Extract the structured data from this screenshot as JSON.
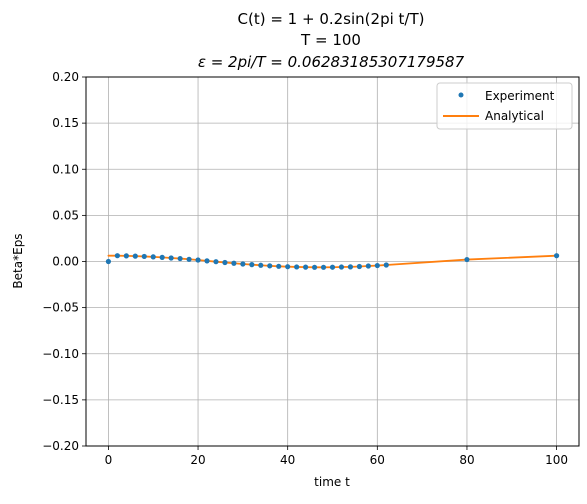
{
  "chart_data": {
    "type": "line",
    "title_lines": [
      "C(t) = 1 + 0.2sin(2pi t/T)",
      "T = 100",
      "ε = 2pi/T = 0.06283185307179587"
    ],
    "xlabel": "time t",
    "ylabel": "Beta*Eps",
    "xlim": [
      -5,
      105
    ],
    "ylim": [
      -0.2,
      0.2
    ],
    "xticks": [
      0,
      20,
      40,
      60,
      80,
      100
    ],
    "yticks": [
      -0.2,
      -0.15,
      -0.1,
      -0.05,
      0.0,
      0.05,
      0.1,
      0.15,
      0.2
    ],
    "xtick_labels": [
      "0",
      "20",
      "40",
      "60",
      "80",
      "100"
    ],
    "ytick_labels": [
      "−0.20",
      "−0.15",
      "−0.10",
      "−0.05",
      "0.00",
      "0.05",
      "0.10",
      "0.15",
      "0.20"
    ],
    "grid": true,
    "legend_position": "upper right",
    "series": [
      {
        "name": "Experiment",
        "style": "markers",
        "color": "#1f77b4",
        "x": [
          0,
          2,
          4,
          6,
          8,
          10,
          12,
          14,
          16,
          18,
          20,
          22,
          24,
          26,
          28,
          30,
          32,
          34,
          36,
          38,
          40,
          42,
          44,
          46,
          48,
          50,
          52,
          54,
          56,
          58,
          60,
          62,
          80,
          100
        ],
        "y": [
          0.0,
          0.0063,
          0.0061,
          0.0058,
          0.0055,
          0.005,
          0.0045,
          0.0038,
          0.0032,
          0.0024,
          0.0016,
          0.0007,
          -0.0002,
          -0.0011,
          -0.0019,
          -0.0027,
          -0.0034,
          -0.0041,
          -0.0047,
          -0.0052,
          -0.0056,
          -0.0059,
          -0.0061,
          -0.0063,
          -0.0063,
          -0.0062,
          -0.006,
          -0.0058,
          -0.0054,
          -0.0049,
          -0.0044,
          -0.0038,
          0.0021,
          0.0063
        ]
      },
      {
        "name": "Analytical",
        "style": "line",
        "color": "#ff7f0e",
        "x": [
          0,
          2,
          4,
          6,
          8,
          10,
          12,
          14,
          16,
          18,
          20,
          22,
          24,
          26,
          28,
          30,
          32,
          34,
          36,
          38,
          40,
          42,
          44,
          46,
          48,
          50,
          52,
          54,
          56,
          58,
          60,
          62,
          80,
          100
        ],
        "y": [
          0.0063,
          0.0063,
          0.0061,
          0.0058,
          0.0055,
          0.005,
          0.0045,
          0.0038,
          0.0032,
          0.0024,
          0.0016,
          0.0007,
          -0.0002,
          -0.0011,
          -0.0019,
          -0.0027,
          -0.0034,
          -0.0041,
          -0.0047,
          -0.0052,
          -0.0056,
          -0.0059,
          -0.0061,
          -0.0063,
          -0.0063,
          -0.0062,
          -0.006,
          -0.0058,
          -0.0054,
          -0.0049,
          -0.0044,
          -0.0038,
          0.0021,
          0.0063
        ]
      }
    ]
  }
}
